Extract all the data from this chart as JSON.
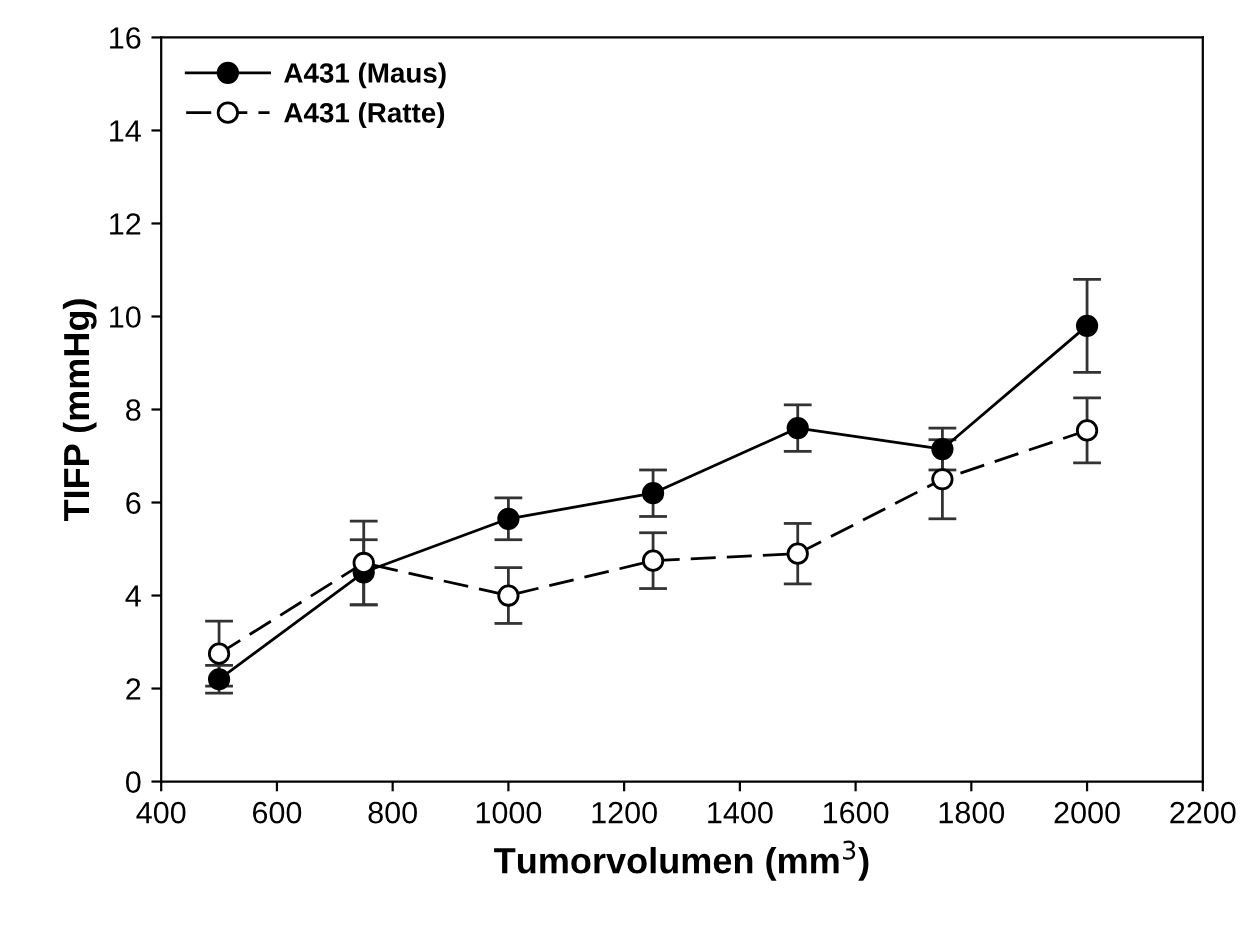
{
  "chart_data": {
    "type": "line",
    "xlabel": "Tumorvolumen (mm$^{3}$)",
    "ylabel": "TIFP (mmHg)",
    "x": [
      500,
      750,
      1000,
      1250,
      1500,
      1750,
      2000
    ],
    "series": [
      {
        "name": "A431 (Maus)",
        "color": "#000000",
        "values": [
          2.2,
          4.5,
          5.65,
          6.2,
          7.6,
          7.15,
          9.8
        ],
        "errors": [
          0.3,
          0.7,
          0.45,
          0.5,
          0.5,
          0.45,
          1.0
        ],
        "marker": "circle",
        "line_style": "solid"
      },
      {
        "name": "A431 (Ratte)",
        "color": "#000000",
        "values": [
          2.75,
          4.7,
          4.0,
          4.75,
          4.9,
          6.5,
          7.55
        ],
        "errors": [
          0.7,
          0.9,
          0.6,
          0.6,
          0.65,
          0.85,
          0.7
        ],
        "marker": "circle",
        "line_style": "dashed"
      }
    ],
    "xlim": [
      400,
      2200
    ],
    "xticks": [
      400,
      600,
      800,
      1000,
      1200,
      1400,
      1600,
      1800,
      2000,
      2200
    ],
    "ylim": [
      0,
      16
    ],
    "yticks": [
      0,
      2,
      4,
      6,
      8,
      10,
      12,
      14,
      16
    ],
    "grid": false,
    "legend": "top left"
  }
}
